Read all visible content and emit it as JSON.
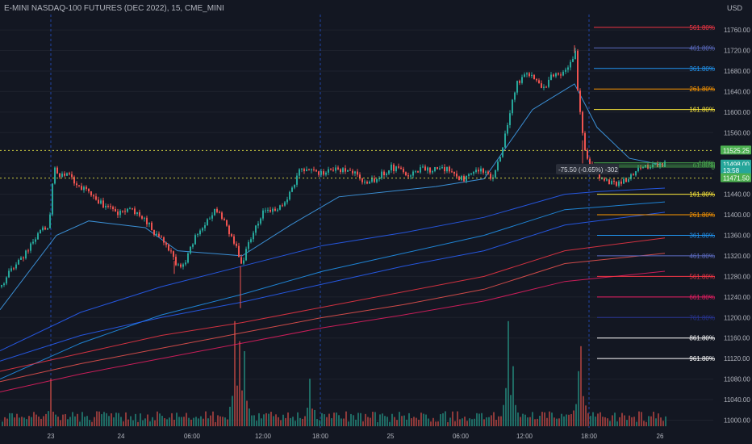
{
  "header": {
    "instrument": "E-MINI NASDAQ-100 FUTURES (DEC 2022), 15, CME_MINI",
    "currency": "USD"
  },
  "colors": {
    "background": "#131722",
    "up": "#26a69a",
    "down": "#ef5350",
    "volume_up": "#1f6b64",
    "volume_down": "#8e3a3a",
    "ma_blue": "#2962ff",
    "ma_light_blue": "#42a5f5",
    "ma_red": "#f23645",
    "dotted_yellow": "#c8c840",
    "text": "#b2b5be"
  },
  "chart_data": {
    "type": "candlestick",
    "title": "E-MINI NASDAQ-100 FUTURES (DEC 2022), 15, CME_MINI",
    "x_tick_labels": [
      "23",
      "24",
      "06:00",
      "12:00",
      "18:00",
      "25",
      "06:00",
      "12:00",
      "18:00",
      "26"
    ],
    "y_tick_labels": [
      "11000.00",
      "11040.00",
      "11080.00",
      "11120.00",
      "11160.00",
      "11200.00",
      "11240.00",
      "11280.00",
      "11320.00",
      "11360.00",
      "11400.00",
      "11440.00",
      "11480.00",
      "11560.00",
      "11600.00",
      "11640.00",
      "11680.00",
      "11720.00",
      "11760.00"
    ],
    "y_ticks": [
      11000,
      11040,
      11080,
      11120,
      11160,
      11200,
      11240,
      11280,
      11320,
      11360,
      11400,
      11440,
      11480,
      11560,
      11600,
      11640,
      11680,
      11720,
      11760
    ],
    "ylim": [
      10985,
      11790
    ],
    "price_labels": [
      {
        "text": "11525.25",
        "value": 11525.25,
        "color": "#4caf50"
      },
      {
        "text": "11498.00",
        "value": 11498.0,
        "color": "#26a69a"
      },
      {
        "text": "13:58",
        "value": 11486.5,
        "color": "#26a69a"
      },
      {
        "text": "11471.50",
        "value": 11471.5,
        "color": "#4caf50"
      }
    ],
    "horizontal_lines": [
      {
        "value": 11525.25,
        "style": "dotted",
        "color": "#c8c840"
      },
      {
        "value": 11471.5,
        "style": "dotted",
        "color": "#c8c840"
      }
    ],
    "measure_label": "-75.50 (-0.65%) -302",
    "fib_upper": [
      {
        "label": "561.80%",
        "value": 11765,
        "color": "#f23645"
      },
      {
        "label": "461.80%",
        "value": 11725,
        "color": "#5c6bc0"
      },
      {
        "label": "361.80%",
        "value": 11685,
        "color": "#2196f3"
      },
      {
        "label": "261.80%",
        "value": 11645,
        "color": "#ff9800"
      },
      {
        "label": "161.80%",
        "value": 11605,
        "color": "#ffeb3b"
      },
      {
        "label": "100%",
        "value": 11501,
        "color": "#4caf50"
      },
      {
        "label": "61.80%",
        "value": 11497,
        "color": "#4caf50"
      },
      {
        "label": "0",
        "value": 11493,
        "color": "#4caf50"
      }
    ],
    "fib_lower": [
      {
        "label": "161.80%",
        "value": 11440,
        "color": "#ffeb3b"
      },
      {
        "label": "261.80%",
        "value": 11400,
        "color": "#ff9800"
      },
      {
        "label": "361.80%",
        "value": 11360,
        "color": "#2196f3"
      },
      {
        "label": "461.80%",
        "value": 11320,
        "color": "#5c6bc0"
      },
      {
        "label": "561.80%",
        "value": 11280,
        "color": "#f23645"
      },
      {
        "label": "661.80%",
        "value": 11240,
        "color": "#e91e63"
      },
      {
        "label": "761.80%",
        "value": 11200,
        "color": "#283593"
      },
      {
        "label": "861.80%",
        "value": 11160,
        "color": "#ffffff"
      },
      {
        "label": "961.80%",
        "value": 11120,
        "color": "#ffffff"
      }
    ],
    "price_path": [
      [
        0,
        11260
      ],
      [
        8,
        11280
      ],
      [
        18,
        11305
      ],
      [
        28,
        11320
      ],
      [
        40,
        11350
      ],
      [
        52,
        11370
      ],
      [
        60,
        11375
      ],
      [
        63,
        11440
      ],
      [
        66,
        11500
      ],
      [
        72,
        11475
      ],
      [
        82,
        11478
      ],
      [
        92,
        11462
      ],
      [
        102,
        11450
      ],
      [
        112,
        11440
      ],
      [
        122,
        11425
      ],
      [
        132,
        11415
      ],
      [
        142,
        11405
      ],
      [
        152,
        11405
      ],
      [
        160,
        11410
      ],
      [
        170,
        11400
      ],
      [
        180,
        11390
      ],
      [
        188,
        11370
      ],
      [
        196,
        11355
      ],
      [
        204,
        11345
      ],
      [
        212,
        11320
      ],
      [
        220,
        11300
      ],
      [
        230,
        11310
      ],
      [
        240,
        11355
      ],
      [
        248,
        11370
      ],
      [
        256,
        11390
      ],
      [
        264,
        11410
      ],
      [
        272,
        11405
      ],
      [
        282,
        11370
      ],
      [
        292,
        11340
      ],
      [
        298,
        11300
      ],
      [
        304,
        11330
      ],
      [
        312,
        11360
      ],
      [
        320,
        11390
      ],
      [
        330,
        11415
      ],
      [
        340,
        11405
      ],
      [
        350,
        11420
      ],
      [
        358,
        11440
      ],
      [
        366,
        11470
      ],
      [
        372,
        11492
      ],
      [
        380,
        11485
      ],
      [
        392,
        11480
      ],
      [
        404,
        11482
      ],
      [
        414,
        11490
      ],
      [
        424,
        11485
      ],
      [
        434,
        11488
      ],
      [
        444,
        11472
      ],
      [
        454,
        11460
      ],
      [
        464,
        11470
      ],
      [
        474,
        11482
      ],
      [
        484,
        11492
      ],
      [
        494,
        11487
      ],
      [
        504,
        11480
      ],
      [
        514,
        11486
      ],
      [
        524,
        11492
      ],
      [
        534,
        11485
      ],
      [
        544,
        11490
      ],
      [
        554,
        11490
      ],
      [
        564,
        11474
      ],
      [
        574,
        11468
      ],
      [
        584,
        11478
      ],
      [
        594,
        11490
      ],
      [
        604,
        11478
      ],
      [
        610,
        11474
      ],
      [
        616,
        11500
      ],
      [
        624,
        11548
      ],
      [
        632,
        11610
      ],
      [
        640,
        11655
      ],
      [
        648,
        11670
      ],
      [
        656,
        11675
      ],
      [
        664,
        11660
      ],
      [
        672,
        11640
      ],
      [
        680,
        11670
      ],
      [
        688,
        11670
      ],
      [
        696,
        11675
      ],
      [
        704,
        11690
      ],
      [
        712,
        11715
      ],
      [
        716,
        11620
      ],
      [
        722,
        11545
      ],
      [
        728,
        11500
      ],
      [
        736,
        11490
      ],
      [
        744,
        11470
      ],
      [
        752,
        11462
      ],
      [
        760,
        11462
      ],
      [
        768,
        11462
      ],
      [
        776,
        11470
      ],
      [
        784,
        11480
      ],
      [
        792,
        11490
      ],
      [
        800,
        11496
      ],
      [
        808,
        11494
      ],
      [
        816,
        11495
      ],
      [
        824,
        11498
      ]
    ],
    "wide_moves": [
      {
        "x": 298,
        "low": 11218
      },
      {
        "x": 216,
        "low": 11285
      },
      {
        "x": 712,
        "high": 11730
      },
      {
        "x": 722,
        "low": 11500
      }
    ],
    "volume": {
      "baseline_value": 0,
      "spikes": [
        {
          "x": 62,
          "value": 95
        },
        {
          "x": 290,
          "value": 210
        },
        {
          "x": 296,
          "value": 170
        },
        {
          "x": 302,
          "value": 150
        },
        {
          "x": 384,
          "value": 95
        },
        {
          "x": 628,
          "value": 210
        },
        {
          "x": 636,
          "value": 120
        },
        {
          "x": 720,
          "value": 160
        },
        {
          "x": 716,
          "value": 110
        }
      ]
    },
    "moving_averages": [
      {
        "color": "#42a5f5",
        "path": [
          [
            0,
            11215
          ],
          [
            70,
            11360
          ],
          [
            110,
            11388
          ],
          [
            180,
            11375
          ],
          [
            220,
            11330
          ],
          [
            300,
            11320
          ],
          [
            360,
            11380
          ],
          [
            420,
            11435
          ],
          [
            540,
            11455
          ],
          [
            600,
            11470
          ],
          [
            660,
            11605
          ],
          [
            712,
            11655
          ],
          [
            740,
            11570
          ],
          [
            780,
            11510
          ],
          [
            824,
            11496
          ]
        ]
      },
      {
        "color": "#2962ff",
        "path": [
          [
            0,
            11135
          ],
          [
            100,
            11210
          ],
          [
            200,
            11260
          ],
          [
            300,
            11300
          ],
          [
            400,
            11340
          ],
          [
            500,
            11365
          ],
          [
            600,
            11395
          ],
          [
            700,
            11440
          ],
          [
            740,
            11445
          ],
          [
            824,
            11452
          ]
        ]
      },
      {
        "color": "#2196f3",
        "path": [
          [
            0,
            11080
          ],
          [
            100,
            11150
          ],
          [
            200,
            11205
          ],
          [
            300,
            11245
          ],
          [
            400,
            11290
          ],
          [
            500,
            11325
          ],
          [
            600,
            11360
          ],
          [
            700,
            11410
          ],
          [
            824,
            11425
          ]
        ]
      },
      {
        "color": "#2962ff",
        "path": [
          [
            0,
            11115
          ],
          [
            100,
            11165
          ],
          [
            200,
            11200
          ],
          [
            300,
            11230
          ],
          [
            400,
            11265
          ],
          [
            500,
            11300
          ],
          [
            600,
            11330
          ],
          [
            700,
            11380
          ],
          [
            824,
            11405
          ]
        ]
      },
      {
        "color": "#f23645",
        "path": [
          [
            0,
            11095
          ],
          [
            100,
            11130
          ],
          [
            200,
            11165
          ],
          [
            300,
            11190
          ],
          [
            400,
            11220
          ],
          [
            500,
            11250
          ],
          [
            600,
            11280
          ],
          [
            700,
            11330
          ],
          [
            824,
            11355
          ]
        ]
      },
      {
        "color": "#ef5350",
        "path": [
          [
            0,
            11075
          ],
          [
            100,
            11110
          ],
          [
            200,
            11140
          ],
          [
            300,
            11170
          ],
          [
            400,
            11200
          ],
          [
            500,
            11225
          ],
          [
            600,
            11255
          ],
          [
            700,
            11305
          ],
          [
            824,
            11325
          ]
        ]
      },
      {
        "color": "#e91e63",
        "path": [
          [
            0,
            11055
          ],
          [
            100,
            11090
          ],
          [
            200,
            11120
          ],
          [
            300,
            11150
          ],
          [
            400,
            11180
          ],
          [
            500,
            11205
          ],
          [
            600,
            11232
          ],
          [
            700,
            11270
          ],
          [
            824,
            11290
          ]
        ]
      }
    ]
  }
}
